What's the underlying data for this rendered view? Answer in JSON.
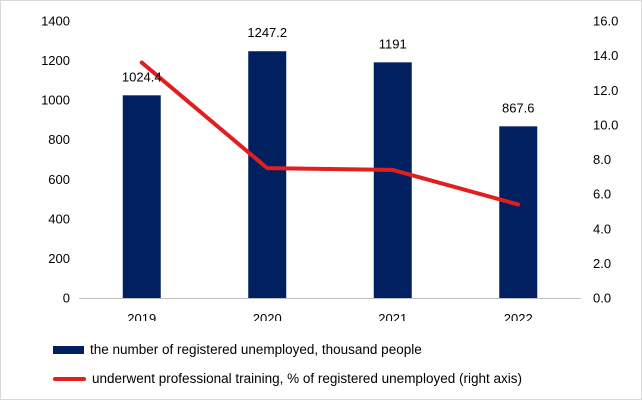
{
  "chart_data": {
    "type": "bar",
    "categories": [
      "2019",
      "2020",
      "2021",
      "2022"
    ],
    "series": [
      {
        "name": "the number of registered unemployed, thousand people",
        "type": "bar",
        "axis": "left",
        "values": [
          1024.4,
          1247.2,
          1191,
          867.6
        ],
        "labels": [
          "1024.4",
          "1247.2",
          "1191",
          "867.6"
        ],
        "color": "#002060"
      },
      {
        "name": "underwent professional training, % of registered unemployed (right axis)",
        "type": "line",
        "axis": "right",
        "values": [
          13.6,
          7.5,
          7.4,
          5.4
        ],
        "color": "#e01f1f"
      }
    ],
    "y_left": {
      "ylim": [
        0,
        1400
      ],
      "ticks": [
        "0",
        "200",
        "400",
        "600",
        "800",
        "1000",
        "1200",
        "1400"
      ]
    },
    "y_right": {
      "ylim": [
        0,
        16
      ],
      "ticks": [
        "0.0",
        "2.0",
        "4.0",
        "6.0",
        "8.0",
        "10.0",
        "12.0",
        "14.0",
        "16.0"
      ]
    },
    "grid": false,
    "legend_position": "bottom-left"
  }
}
